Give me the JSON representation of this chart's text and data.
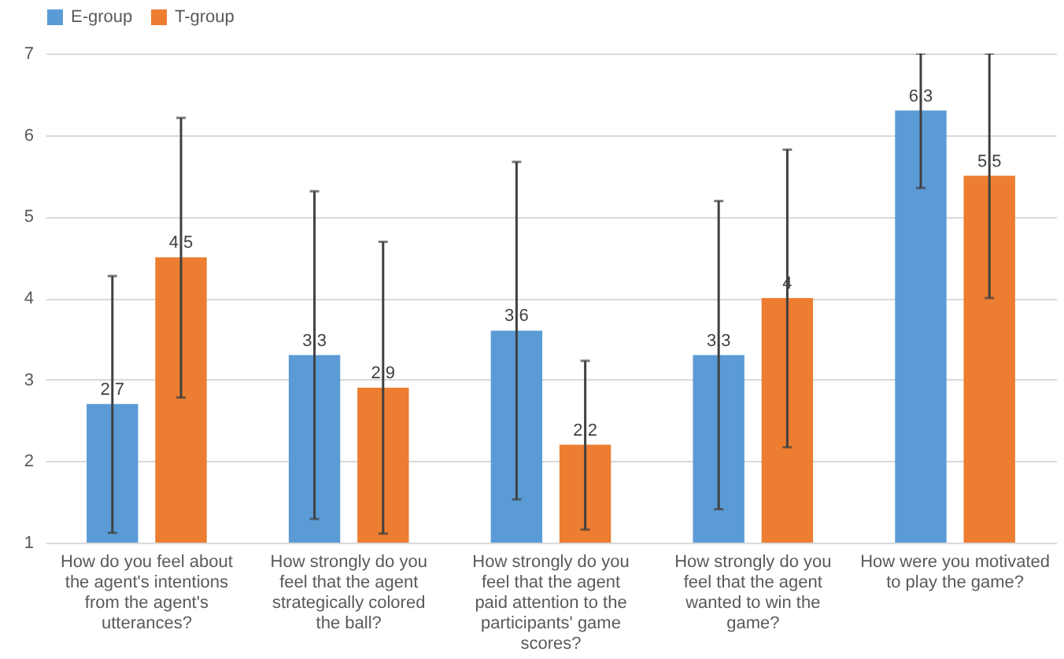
{
  "chart_data": {
    "type": "bar",
    "categories": [
      "How do you feel about the agent's intentions from the agent's utterances?",
      "How strongly do you feel that the agent strategically colored the ball?",
      "How strongly do you feel that the agent paid attention to the participants' game scores?",
      "How strongly do you feel that the agent wanted to win the game?",
      "How were you motivated to play the game?"
    ],
    "series": [
      {
        "name": "E-group",
        "color": "#5b9bd5",
        "values": [
          2.7,
          3.3,
          3.6,
          3.3,
          6.3
        ],
        "errors": [
          [
            1.12,
            4.27
          ],
          [
            1.29,
            5.31
          ],
          [
            1.53,
            5.67
          ],
          [
            1.41,
            5.19
          ],
          [
            5.35,
            7.0
          ]
        ]
      },
      {
        "name": "T-group",
        "color": "#ed7d31",
        "values": [
          4.5,
          2.9,
          2.2,
          4,
          5.5
        ],
        "errors": [
          [
            2.78,
            6.21
          ],
          [
            1.11,
            4.69
          ],
          [
            1.16,
            3.23
          ],
          [
            2.17,
            5.82
          ],
          [
            4.0,
            7.0
          ]
        ]
      }
    ],
    "ylim": [
      1,
      7
    ],
    "yticks": [
      1,
      2,
      3,
      4,
      5,
      6,
      7
    ],
    "grid": "y",
    "legend": "top",
    "data_labels": true
  }
}
